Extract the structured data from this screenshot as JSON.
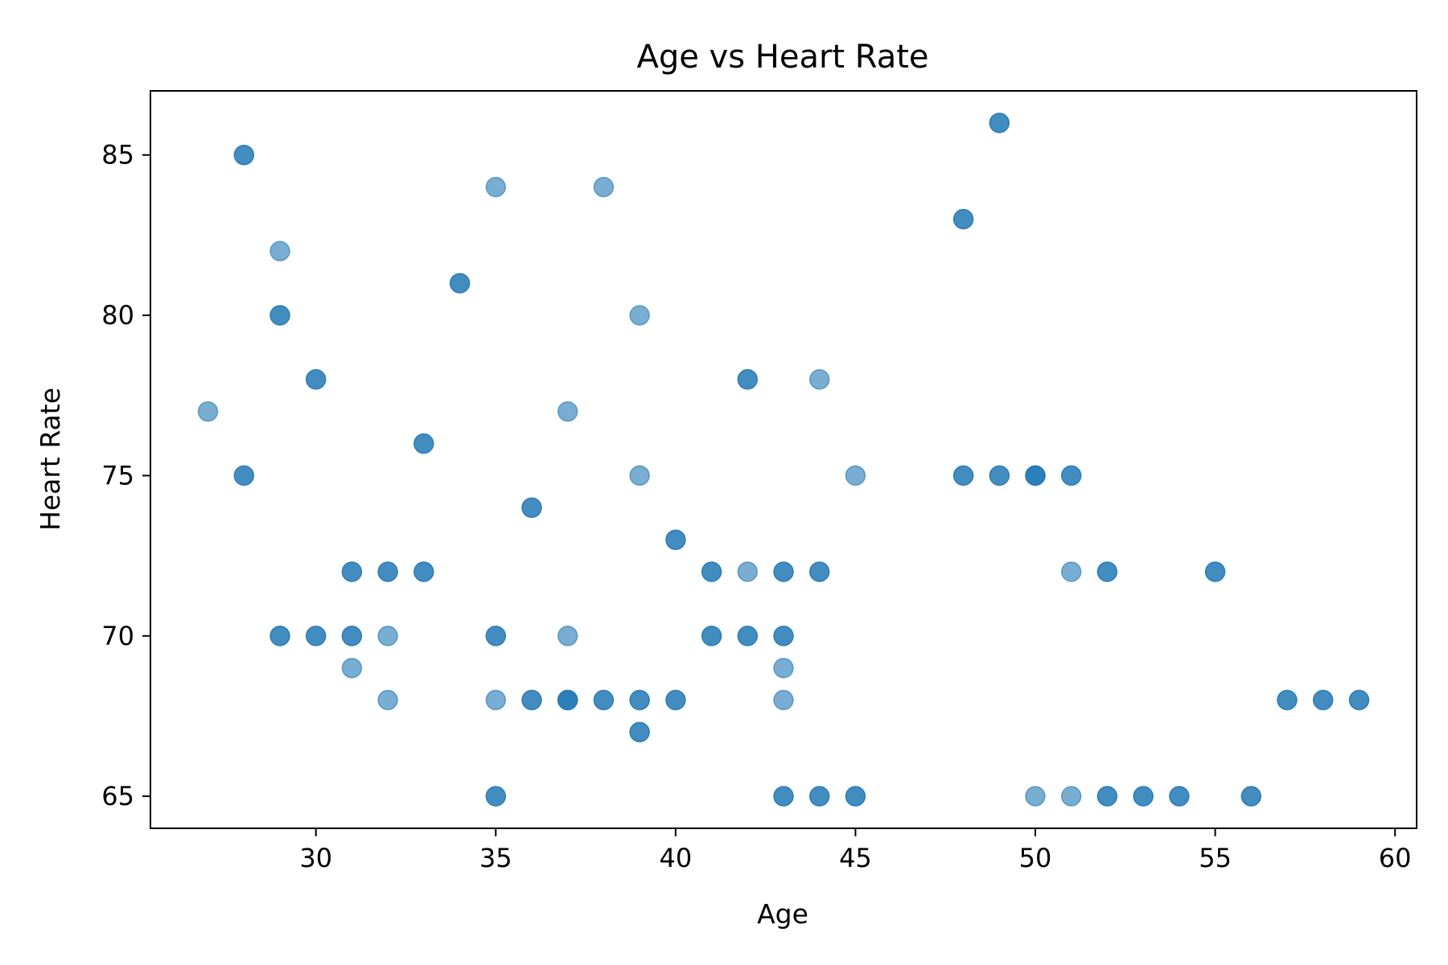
{
  "chart_data": {
    "type": "scatter",
    "title": "Age vs Heart Rate",
    "xlabel": "Age",
    "ylabel": "Heart Rate",
    "xlim": [
      25.4,
      60.6
    ],
    "ylim": [
      64.0,
      87.0
    ],
    "xticks": [
      30,
      35,
      40,
      45,
      50,
      55,
      60
    ],
    "yticks": [
      65,
      70,
      75,
      80,
      85
    ],
    "grid": false,
    "point_color": "#1f77b4",
    "point_alpha": 0.6,
    "series": [
      {
        "x": [
          27,
          28,
          28,
          28,
          28,
          29,
          29,
          29,
          29,
          29,
          30,
          30,
          30,
          30,
          31,
          31,
          31,
          31,
          31,
          32,
          32,
          32,
          32,
          33,
          33,
          33,
          33,
          34,
          34,
          35,
          35,
          35,
          35,
          35,
          35,
          36,
          36,
          36,
          36,
          37,
          37,
          37,
          37,
          37,
          38,
          38,
          38,
          39,
          39,
          39,
          39,
          39,
          39,
          40,
          40,
          40,
          40,
          41,
          41,
          41,
          41,
          42,
          42,
          42,
          42,
          42,
          43,
          43,
          43,
          43,
          43,
          43,
          43,
          43,
          44,
          44,
          44,
          44,
          44,
          45,
          45,
          45,
          48,
          48,
          48,
          48,
          49,
          49,
          49,
          49,
          50,
          50,
          50,
          50,
          51,
          51,
          51,
          51,
          52,
          52,
          52,
          52,
          53,
          53,
          54,
          54,
          55,
          55,
          56,
          56,
          57,
          57,
          58,
          58,
          59,
          59
        ],
        "y": [
          77,
          85,
          85,
          75,
          75,
          82,
          80,
          80,
          70,
          70,
          78,
          78,
          70,
          70,
          72,
          72,
          70,
          70,
          69,
          72,
          72,
          70,
          68,
          76,
          76,
          72,
          72,
          81,
          81,
          84,
          70,
          70,
          68,
          65,
          65,
          74,
          74,
          68,
          68,
          77,
          70,
          68,
          68,
          68,
          84,
          68,
          68,
          80,
          75,
          68,
          68,
          67,
          67,
          73,
          73,
          68,
          68,
          72,
          72,
          70,
          70,
          78,
          78,
          72,
          70,
          70,
          72,
          72,
          70,
          70,
          69,
          68,
          65,
          65,
          78,
          72,
          72,
          65,
          65,
          75,
          65,
          65,
          83,
          83,
          75,
          75,
          86,
          86,
          75,
          75,
          75,
          75,
          75,
          65,
          75,
          75,
          72,
          65,
          72,
          72,
          65,
          65,
          65,
          65,
          65,
          65,
          72,
          72,
          65,
          65,
          68,
          68,
          68,
          68,
          68,
          68
        ]
      }
    ]
  }
}
